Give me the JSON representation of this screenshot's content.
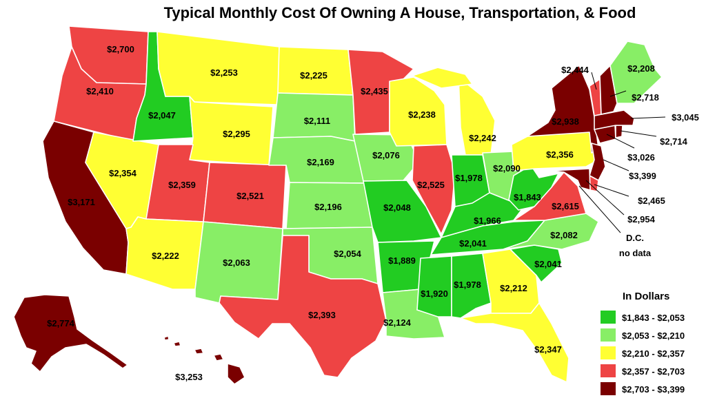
{
  "title": "Typical Monthly Cost Of Owning A House, Transportation, & Food",
  "legend": {
    "title": "In Dollars",
    "items": [
      {
        "range": "$1,843 - $2,053",
        "color": "#22cc22"
      },
      {
        "range": "$2,053 - $2,210",
        "color": "#88ee66"
      },
      {
        "range": "$2,210 - $2,357",
        "color": "#ffff33"
      },
      {
        "range": "$2,357 - $2,703",
        "color": "#ee4444"
      },
      {
        "range": "$2,703 - $3,399",
        "color": "#7a0000"
      }
    ]
  },
  "states": {
    "WA": "$2,700",
    "OR": "$2,410",
    "CA": "$3,171",
    "ID": "$2,047",
    "NV": "$2,354",
    "MT": "$2,253",
    "WY": "$2,295",
    "UT": "$2,359",
    "AZ": "$2,222",
    "CO": "$2,521",
    "NM": "$2,063",
    "ND": "$2,225",
    "SD": "$2,111",
    "NE": "$2,169",
    "KS": "$2,196",
    "OK": "$2,054",
    "TX": "$2,393",
    "MN": "$2,435",
    "IA": "$2,076",
    "MO": "$2,048",
    "AR": "$1,889",
    "LA": "$2,124",
    "WI": "$2,238",
    "IL": "$2,525",
    "MI": "$2,242",
    "IN": "$1,978",
    "OH": "$2,090",
    "KY": "$1,966",
    "TN": "$2,041",
    "MS": "$1,920",
    "AL": "$1,978",
    "GA": "$2,212",
    "FL": "$2,347",
    "SC": "$2,041",
    "NC": "$2,082",
    "VA": "$2,615",
    "WV": "$1,843",
    "PA": "$2,356",
    "NY": "$2,938",
    "VT": "$2,444",
    "NH": "$2,718",
    "ME": "$2,208",
    "MA": "$3,045",
    "RI": "$2,714",
    "CT": "$3,026",
    "NJ": "$3,399",
    "DE": "$2,465",
    "MD": "$2,954",
    "AK": "$2,774",
    "HI": "$3,253"
  },
  "dc_note_line1": "D.C.",
  "dc_note_line2": "no data"
}
